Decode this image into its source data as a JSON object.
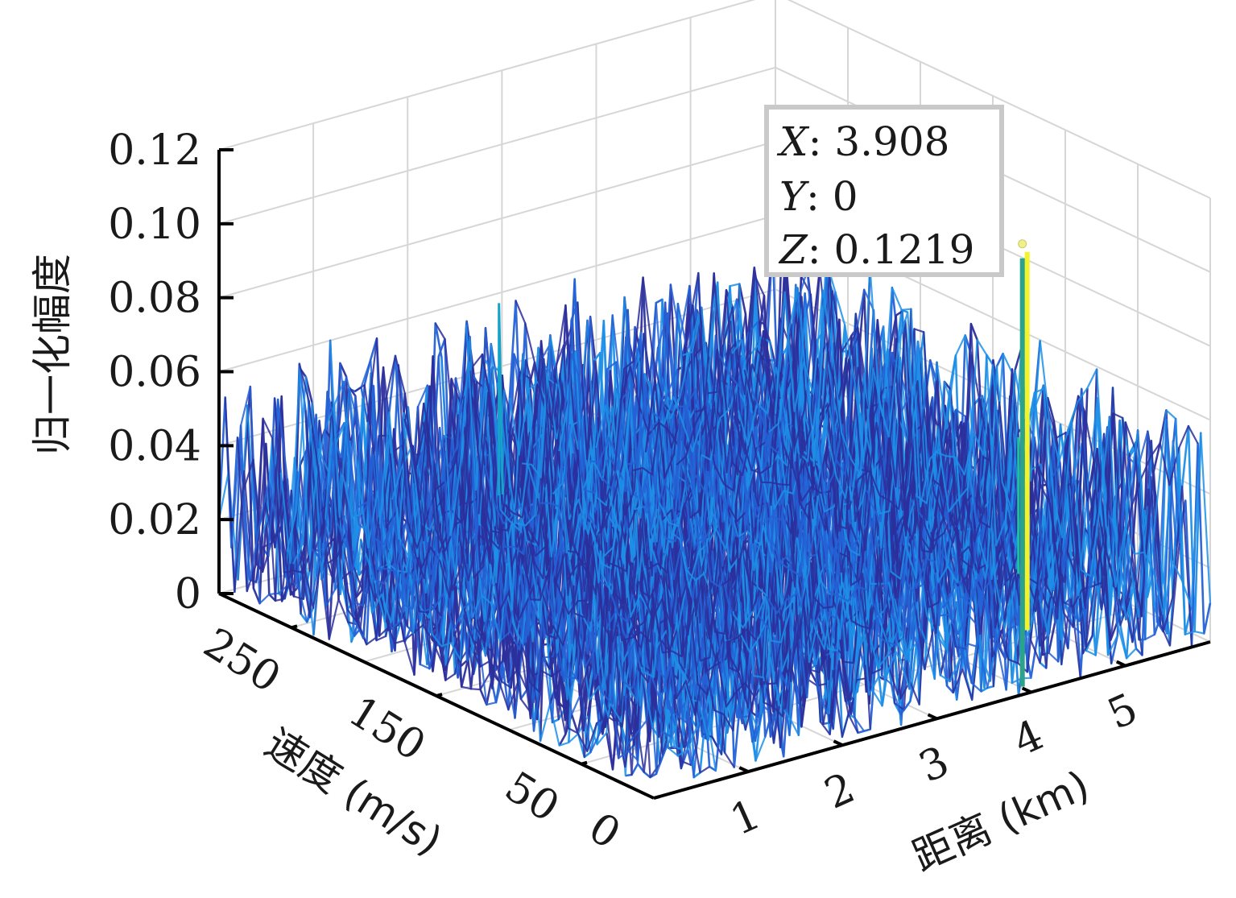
{
  "chart_data": {
    "type": "surface",
    "title": "",
    "xlabel": "距离 (km)",
    "ylabel": "速度 (m/s)",
    "zlabel": "归一化幅度",
    "x_ticks": [
      "1",
      "2",
      "3",
      "4",
      "5"
    ],
    "y_ticks": [
      "0",
      "50",
      "150",
      "250"
    ],
    "z_ticks": [
      "0",
      "0.02",
      "0.04",
      "0.06",
      "0.08",
      "0.10",
      "0.12"
    ],
    "xlim": [
      0,
      5.9
    ],
    "ylim": [
      0,
      300
    ],
    "zlim": [
      0,
      0.12
    ],
    "grid": true,
    "noise_floor_max": 0.06,
    "secondary_peak": {
      "x": 2.2,
      "y": 250,
      "z": 0.072
    },
    "target_peak": {
      "x": 3.908,
      "y": 0,
      "z": 0.1219
    },
    "colors": {
      "noise_low": "#2c2f9c",
      "noise_mid": "#2462d6",
      "noise_high": "#1d8fe8",
      "peak": "#2aa38a",
      "highlight": "#f3f32b"
    },
    "datatip": {
      "x_key": "X",
      "x_val": ": 3.908",
      "y_key": "Y",
      "y_val": ": 0",
      "z_key": "Z",
      "z_val": ": 0.1219"
    }
  }
}
